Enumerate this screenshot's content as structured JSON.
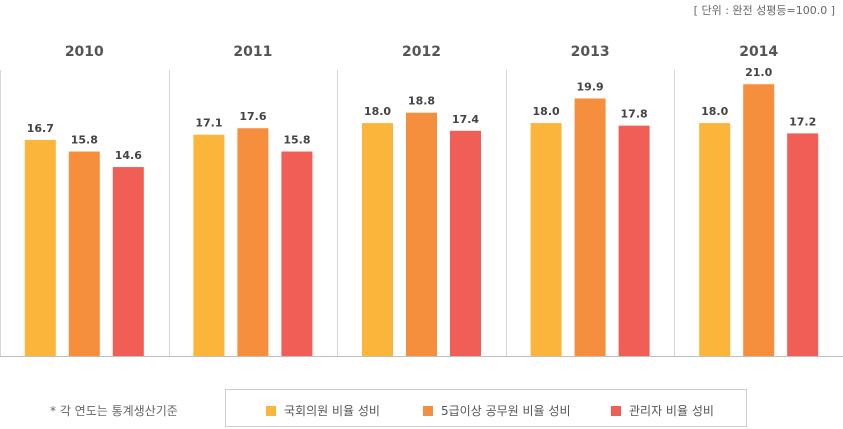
{
  "unit_note": "[ 단위 : 완전 성평등=100.0 ]",
  "footnote": "* 각 연도는 통계생산기준",
  "colors": {
    "series": [
      "#FBB53A",
      "#F68F3D",
      "#F05E56"
    ],
    "panel_border": "#d6d6d6",
    "baseline": "#bdbdbd"
  },
  "chart_data": {
    "type": "bar",
    "categories": [
      "2010",
      "2011",
      "2012",
      "2013",
      "2014"
    ],
    "series": [
      {
        "name": "국회의원 비율 성비",
        "values": [
          16.7,
          17.1,
          18.0,
          18.0,
          18.0
        ]
      },
      {
        "name": "5급이상 공무원 비율 성비",
        "values": [
          15.8,
          17.6,
          18.8,
          19.9,
          21.0
        ]
      },
      {
        "name": "관리자 비율 성비",
        "values": [
          14.6,
          15.8,
          17.4,
          17.8,
          17.2
        ]
      }
    ],
    "value_labels": [
      [
        "16.7",
        "17.1",
        "18.0",
        "18.0",
        "18.0"
      ],
      [
        "15.8",
        "17.6",
        "18.8",
        "19.9",
        "21.0"
      ],
      [
        "14.6",
        "15.8",
        "17.4",
        "17.8",
        "17.2"
      ]
    ],
    "ylim": [
      0,
      22.1
    ],
    "grid": false,
    "legend_position": "bottom"
  }
}
